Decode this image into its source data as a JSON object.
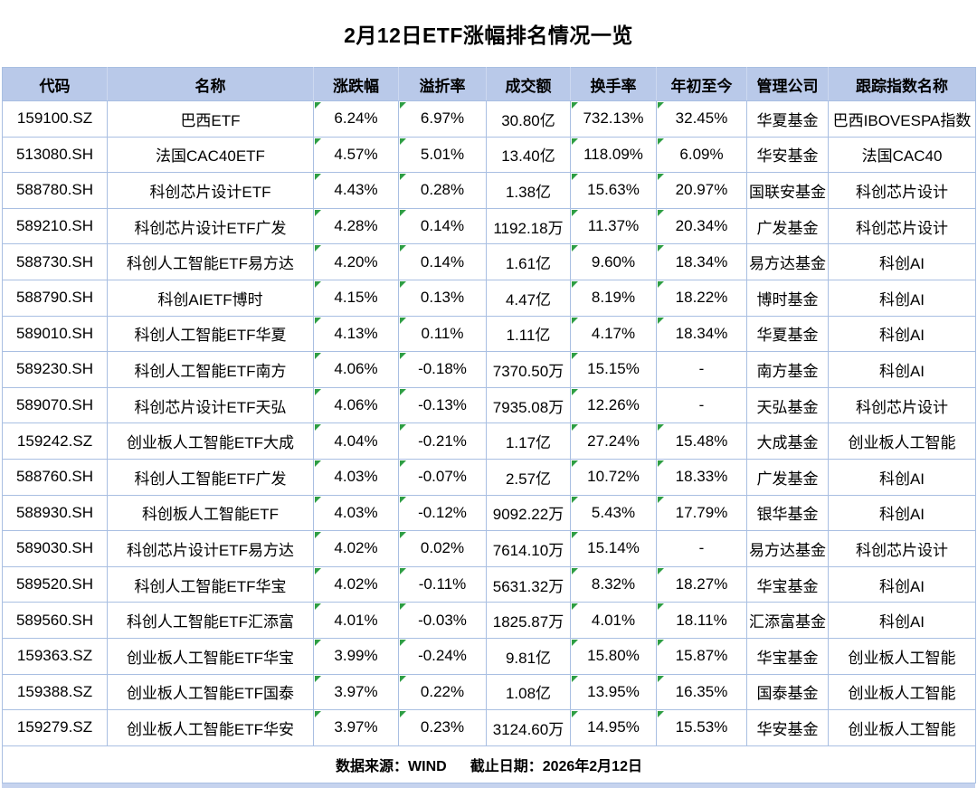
{
  "chart_data": {
    "type": "table",
    "title": "2月12日ETF涨幅排名情况一览",
    "columns": [
      "代码",
      "名称",
      "涨跌幅",
      "溢折率",
      "成交额",
      "换手率",
      "年初至今",
      "管理公司",
      "跟踪指数名称"
    ],
    "rows": [
      {
        "code": "159100.SZ",
        "name": "巴西ETF",
        "change": "6.24%",
        "premium": "6.97%",
        "turnover": "30.80亿",
        "turnover_rate": "732.13%",
        "ytd": "32.45%",
        "manager": "华夏基金",
        "index": "巴西IBOVESPA指数"
      },
      {
        "code": "513080.SH",
        "name": "法国CAC40ETF",
        "change": "4.57%",
        "premium": "5.01%",
        "turnover": "13.40亿",
        "turnover_rate": "118.09%",
        "ytd": "6.09%",
        "manager": "华安基金",
        "index": "法国CAC40"
      },
      {
        "code": "588780.SH",
        "name": "科创芯片设计ETF",
        "change": "4.43%",
        "premium": "0.28%",
        "turnover": "1.38亿",
        "turnover_rate": "15.63%",
        "ytd": "20.97%",
        "manager": "国联安基金",
        "index": "科创芯片设计"
      },
      {
        "code": "589210.SH",
        "name": "科创芯片设计ETF广发",
        "change": "4.28%",
        "premium": "0.14%",
        "turnover": "1192.18万",
        "turnover_rate": "11.37%",
        "ytd": "20.34%",
        "manager": "广发基金",
        "index": "科创芯片设计"
      },
      {
        "code": "588730.SH",
        "name": "科创人工智能ETF易方达",
        "change": "4.20%",
        "premium": "0.14%",
        "turnover": "1.61亿",
        "turnover_rate": "9.60%",
        "ytd": "18.34%",
        "manager": "易方达基金",
        "index": "科创AI"
      },
      {
        "code": "588790.SH",
        "name": "科创AIETF博时",
        "change": "4.15%",
        "premium": "0.13%",
        "turnover": "4.47亿",
        "turnover_rate": "8.19%",
        "ytd": "18.22%",
        "manager": "博时基金",
        "index": "科创AI"
      },
      {
        "code": "589010.SH",
        "name": "科创人工智能ETF华夏",
        "change": "4.13%",
        "premium": "0.11%",
        "turnover": "1.11亿",
        "turnover_rate": "4.17%",
        "ytd": "18.34%",
        "manager": "华夏基金",
        "index": "科创AI"
      },
      {
        "code": "589230.SH",
        "name": "科创人工智能ETF南方",
        "change": "4.06%",
        "premium": "-0.18%",
        "turnover": "7370.50万",
        "turnover_rate": "15.15%",
        "ytd": "-",
        "manager": "南方基金",
        "index": "科创AI"
      },
      {
        "code": "589070.SH",
        "name": "科创芯片设计ETF天弘",
        "change": "4.06%",
        "premium": "-0.13%",
        "turnover": "7935.08万",
        "turnover_rate": "12.26%",
        "ytd": "-",
        "manager": "天弘基金",
        "index": "科创芯片设计"
      },
      {
        "code": "159242.SZ",
        "name": "创业板人工智能ETF大成",
        "change": "4.04%",
        "premium": "-0.21%",
        "turnover": "1.17亿",
        "turnover_rate": "27.24%",
        "ytd": "15.48%",
        "manager": "大成基金",
        "index": "创业板人工智能"
      },
      {
        "code": "588760.SH",
        "name": "科创人工智能ETF广发",
        "change": "4.03%",
        "premium": "-0.07%",
        "turnover": "2.57亿",
        "turnover_rate": "10.72%",
        "ytd": "18.33%",
        "manager": "广发基金",
        "index": "科创AI"
      },
      {
        "code": "588930.SH",
        "name": "科创板人工智能ETF",
        "change": "4.03%",
        "premium": "-0.12%",
        "turnover": "9092.22万",
        "turnover_rate": "5.43%",
        "ytd": "17.79%",
        "manager": "银华基金",
        "index": "科创AI"
      },
      {
        "code": "589030.SH",
        "name": "科创芯片设计ETF易方达",
        "change": "4.02%",
        "premium": "0.02%",
        "turnover": "7614.10万",
        "turnover_rate": "15.14%",
        "ytd": "-",
        "manager": "易方达基金",
        "index": "科创芯片设计"
      },
      {
        "code": "589520.SH",
        "name": "科创人工智能ETF华宝",
        "change": "4.02%",
        "premium": "-0.11%",
        "turnover": "5631.32万",
        "turnover_rate": "8.32%",
        "ytd": "18.27%",
        "manager": "华宝基金",
        "index": "科创AI"
      },
      {
        "code": "589560.SH",
        "name": "科创人工智能ETF汇添富",
        "change": "4.01%",
        "premium": "-0.03%",
        "turnover": "1825.87万",
        "turnover_rate": "4.01%",
        "ytd": "18.11%",
        "manager": "汇添富基金",
        "index": "科创AI"
      },
      {
        "code": "159363.SZ",
        "name": "创业板人工智能ETF华宝",
        "change": "3.99%",
        "premium": "-0.24%",
        "turnover": "9.81亿",
        "turnover_rate": "15.80%",
        "ytd": "15.87%",
        "manager": "华宝基金",
        "index": "创业板人工智能"
      },
      {
        "code": "159388.SZ",
        "name": "创业板人工智能ETF国泰",
        "change": "3.97%",
        "premium": "0.22%",
        "turnover": "1.08亿",
        "turnover_rate": "13.95%",
        "ytd": "16.35%",
        "manager": "国泰基金",
        "index": "创业板人工智能"
      },
      {
        "code": "159279.SZ",
        "name": "创业板人工智能ETF华安",
        "change": "3.97%",
        "premium": "0.23%",
        "turnover": "3124.60万",
        "turnover_rate": "14.95%",
        "ytd": "15.53%",
        "manager": "华安基金",
        "index": "创业板人工智能"
      }
    ],
    "flag_fields": [
      "change",
      "premium",
      "turnover_rate",
      "ytd"
    ],
    "footer": {
      "source": "数据来源：WIND",
      "cutoff": "截止日期：2026年2月12日"
    },
    "colors": {
      "header_bg": "#b9c9e9",
      "grid_border": "#a9bfe2",
      "flag_green": "#2e9e44"
    }
  }
}
